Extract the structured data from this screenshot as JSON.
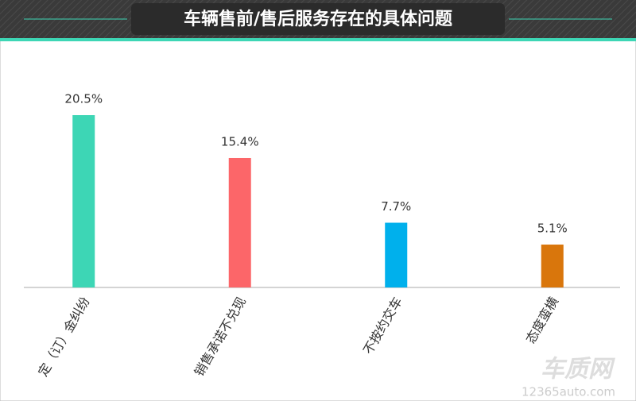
{
  "chart_data": {
    "type": "bar",
    "title": "车辆售前/售后服务存在的具体问题",
    "categories": [
      "定（订）金纠纷",
      "销售承诺不兑现",
      "不按约交车",
      "态度蛮横"
    ],
    "values": [
      20.5,
      15.4,
      7.7,
      5.1
    ],
    "value_labels": [
      "20.5%",
      "15.4%",
      "7.7%",
      "5.1%"
    ],
    "colors": [
      "#3dd6b5",
      "#fc6669",
      "#00b0ec",
      "#d9760c"
    ]
  },
  "watermark": {
    "brand": "车质网",
    "url": "12365auto.com"
  }
}
